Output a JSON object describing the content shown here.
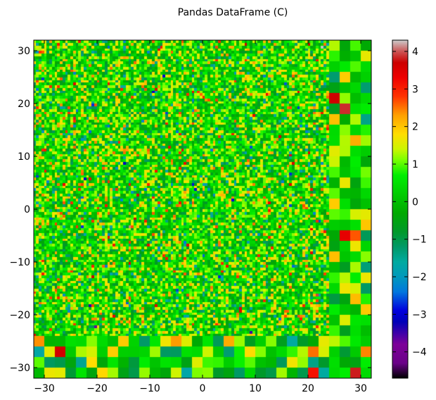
{
  "chart_data": {
    "type": "heatmap",
    "title": "Pandas DataFrame (C)",
    "xlabel": "",
    "ylabel": "",
    "xlim": [
      -32,
      32
    ],
    "ylim": [
      -32,
      32
    ],
    "x_ticks": [
      -30,
      -20,
      -10,
      0,
      10,
      20,
      30
    ],
    "y_ticks": [
      -30,
      -20,
      -10,
      0,
      10,
      20,
      30
    ],
    "x_tick_labels": [
      "−30",
      "−20",
      "−10",
      "0",
      "10",
      "20",
      "30"
    ],
    "y_tick_labels": [
      "−30",
      "−20",
      "−10",
      "0",
      "10",
      "20",
      "30"
    ],
    "colorbar": {
      "range": [
        -4.7,
        4.3
      ],
      "ticks": [
        -4,
        -3,
        -2,
        -1,
        0,
        1,
        2,
        3,
        4
      ],
      "tick_labels": [
        "−4",
        "−3",
        "−2",
        "−1",
        "0",
        "1",
        "2",
        "3",
        "4"
      ],
      "colormap": "nipy_spectral",
      "colormap_stops": [
        {
          "v": -4.7,
          "c": "#000000"
        },
        {
          "v": -4.3,
          "c": "#6a0088"
        },
        {
          "v": -3.8,
          "c": "#7d0099"
        },
        {
          "v": -3.2,
          "c": "#0000b8"
        },
        {
          "v": -2.9,
          "c": "#0000dd"
        },
        {
          "v": -2.4,
          "c": "#0077dd"
        },
        {
          "v": -2.0,
          "c": "#0099bb"
        },
        {
          "v": -1.6,
          "c": "#00aaa0"
        },
        {
          "v": -1.2,
          "c": "#009966"
        },
        {
          "v": -0.8,
          "c": "#00992a"
        },
        {
          "v": -0.3,
          "c": "#00aa00"
        },
        {
          "v": 0.2,
          "c": "#00cc00"
        },
        {
          "v": 0.7,
          "c": "#00ee00"
        },
        {
          "v": 1.1,
          "c": "#77ff00"
        },
        {
          "v": 1.4,
          "c": "#ccf500"
        },
        {
          "v": 1.8,
          "c": "#ffdd00"
        },
        {
          "v": 2.3,
          "c": "#ffa000"
        },
        {
          "v": 2.8,
          "c": "#ff3300"
        },
        {
          "v": 3.3,
          "c": "#ee0000"
        },
        {
          "v": 3.7,
          "c": "#cc0000"
        },
        {
          "v": 4.0,
          "c": "#cc5555"
        },
        {
          "v": 4.3,
          "c": "#cccccc"
        }
      ]
    },
    "regions": {
      "fine_grid": {
        "x_range": [
          -32,
          24
        ],
        "y_range": [
          -24,
          32
        ],
        "cell_size": 0.5
      },
      "coarse_right_strip": {
        "x_range": [
          24,
          32
        ],
        "y_range": [
          -32,
          32
        ],
        "cell_size": 2
      },
      "coarse_bottom_strip": {
        "x_range": [
          -32,
          32
        ],
        "y_range": [
          -32,
          24
        ],
        "cell_size": 2,
        "y_extent": [
          -32,
          -24
        ]
      }
    },
    "values_note_absent": true,
    "values_distribution": {
      "mean": 0.5,
      "std": 1.0
    }
  }
}
